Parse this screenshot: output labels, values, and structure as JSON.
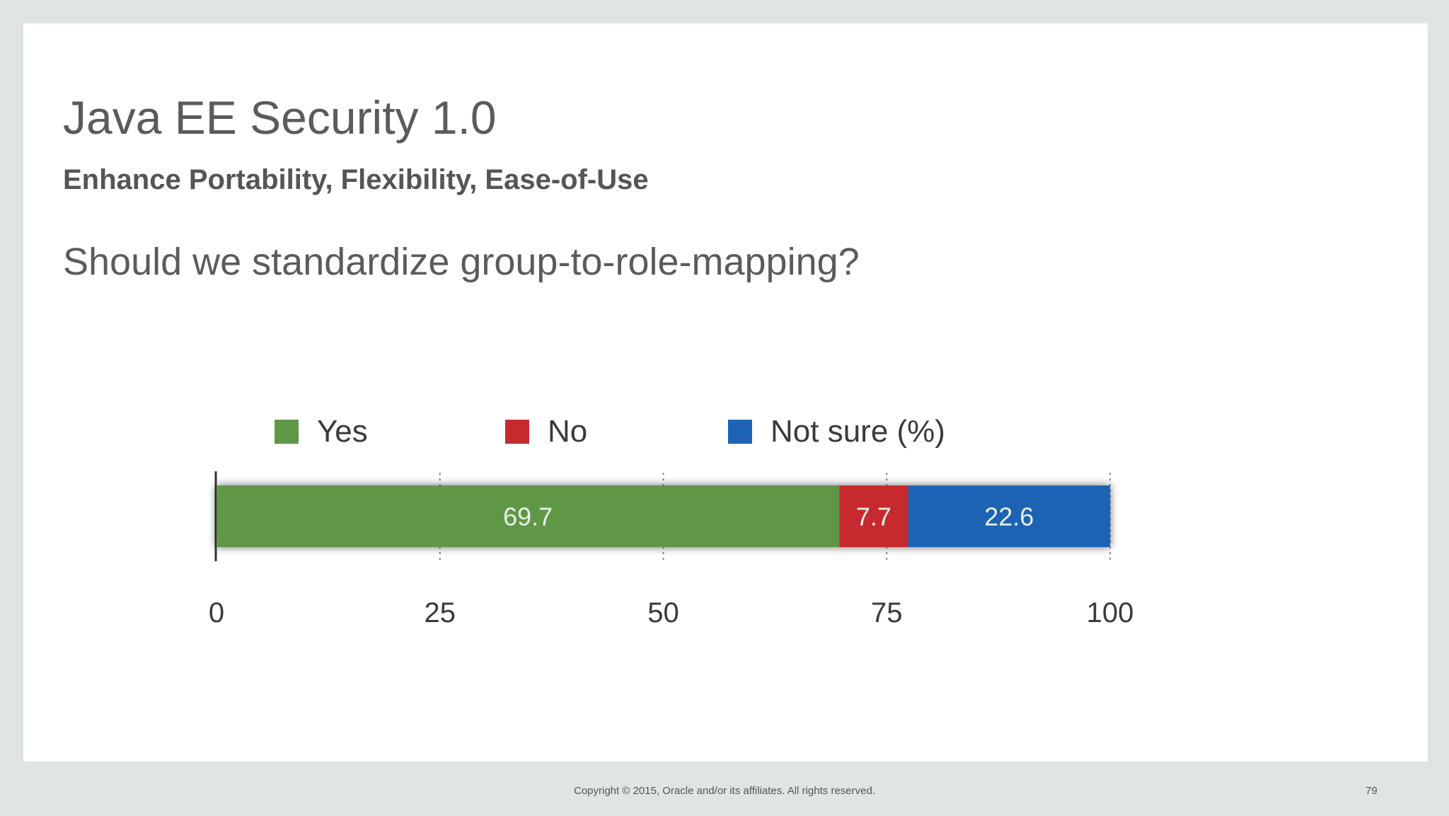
{
  "slide": {
    "title": "Java EE Security 1.0",
    "subtitle": "Enhance Portability, Flexibility, Ease-of-Use",
    "question": "Should we standardize group-to-role-mapping?"
  },
  "footer": {
    "copyright": "Copyright © 2015, Oracle and/or its affiliates. All rights reserved.",
    "page_number": "79"
  },
  "chart_data": {
    "type": "bar",
    "orientation": "horizontal",
    "stacked": true,
    "categories": [
      ""
    ],
    "series": [
      {
        "name": "Yes",
        "values": [
          69.7
        ],
        "color": "#5f9747"
      },
      {
        "name": "No",
        "values": [
          7.7
        ],
        "color": "#c62b2f"
      },
      {
        "name": "Not sure (%)",
        "values": [
          22.6
        ],
        "color": "#1f63b4"
      }
    ],
    "data_labels": [
      "69.7",
      "7.7",
      "22.6"
    ],
    "title": "",
    "xlabel": "",
    "ylabel": "",
    "xlim": [
      0,
      100
    ],
    "xticks": [
      0,
      25,
      50,
      75,
      100
    ],
    "grid": "vertical dotted",
    "legend": "top"
  }
}
